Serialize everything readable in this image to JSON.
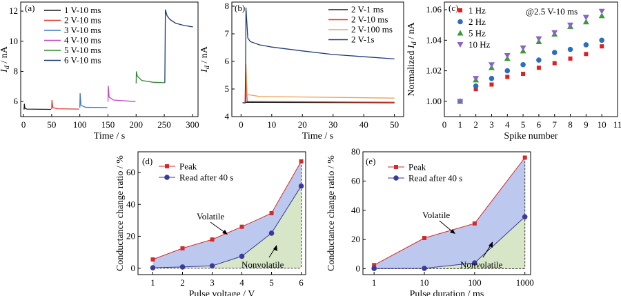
{
  "chart_data": [
    {
      "panel": "(a)",
      "type": "line",
      "xlabel": "Time / s",
      "ylabel": "I_d / nA",
      "xlim": [
        -5,
        310
      ],
      "ylim": [
        5,
        12.6
      ],
      "xticks": [
        0,
        50,
        100,
        150,
        200,
        250,
        300
      ],
      "yticks": [
        6,
        8,
        10,
        12
      ],
      "series": [
        {
          "name": "1 V-10 ms",
          "color": "#1a1a1a",
          "points": [
            [
              0,
              5.5
            ],
            [
              1,
              5.5
            ],
            [
              1.5,
              5.85
            ],
            [
              2.5,
              5.55
            ],
            [
              6,
              5.5
            ],
            [
              49,
              5.48
            ]
          ]
        },
        {
          "name": "2 V-10 ms",
          "color": "#e0392b",
          "points": [
            [
              50,
              5.5
            ],
            [
              50.5,
              6.1
            ],
            [
              52,
              5.6
            ],
            [
              60,
              5.52
            ],
            [
              99,
              5.5
            ]
          ]
        },
        {
          "name": "3 V-10 ms",
          "color": "#3a78c2",
          "points": [
            [
              100,
              5.6
            ],
            [
              100.5,
              6.55
            ],
            [
              102,
              5.75
            ],
            [
              110,
              5.62
            ],
            [
              149,
              5.6
            ]
          ]
        },
        {
          "name": "4 V-10 ms",
          "color": "#c04ac0",
          "points": [
            [
              150,
              6.0
            ],
            [
              150.5,
              7.05
            ],
            [
              152,
              6.3
            ],
            [
              160,
              6.1
            ],
            [
              199,
              6.0
            ]
          ]
        },
        {
          "name": "5 V-10 ms",
          "color": "#2f8a2f",
          "points": [
            [
              200,
              7.2
            ],
            [
              200.5,
              8.0
            ],
            [
              202,
              7.7
            ],
            [
              210,
              7.4
            ],
            [
              230,
              7.28
            ],
            [
              251,
              7.25
            ]
          ]
        },
        {
          "name": "6 V-10 ms",
          "color": "#1f3a78",
          "points": [
            [
              251,
              7.25
            ],
            [
              252,
              12.1
            ],
            [
              255,
              11.7
            ],
            [
              260,
              11.45
            ],
            [
              270,
              11.2
            ],
            [
              285,
              11.05
            ],
            [
              301,
              10.95
            ]
          ]
        }
      ]
    },
    {
      "panel": "(b)",
      "type": "line",
      "xlabel": "Time / s",
      "ylabel": "I_d / nA",
      "xlim": [
        -3,
        53
      ],
      "ylim": [
        4,
        8.15
      ],
      "xticks": [
        0,
        10,
        20,
        30,
        40,
        50
      ],
      "yticks": [
        4,
        5,
        6,
        7,
        8
      ],
      "series": [
        {
          "name": "2 V-1 ms",
          "color": "#1a1a1a",
          "points": [
            [
              0.5,
              4.5
            ],
            [
              1.3,
              4.5
            ],
            [
              1.5,
              4.52
            ],
            [
              50,
              4.5
            ]
          ]
        },
        {
          "name": "2 V-10 ms",
          "color": "#e0392b",
          "points": [
            [
              0.5,
              4.5
            ],
            [
              1.3,
              4.5
            ],
            [
              1.5,
              5.6
            ],
            [
              2,
              4.55
            ],
            [
              50,
              4.52
            ]
          ]
        },
        {
          "name": "2 V-100 ms",
          "color": "#f0a050",
          "points": [
            [
              0.5,
              4.5
            ],
            [
              1.4,
              4.5
            ],
            [
              1.6,
              5.9
            ],
            [
              2,
              4.8
            ],
            [
              6,
              4.73
            ],
            [
              50,
              4.67
            ]
          ]
        },
        {
          "name": "2 V-1s",
          "color": "#1f3a78",
          "points": [
            [
              0.5,
              4.5
            ],
            [
              1.4,
              4.5
            ],
            [
              1.6,
              7.95
            ],
            [
              2.2,
              6.85
            ],
            [
              3,
              6.72
            ],
            [
              6,
              6.6
            ],
            [
              10,
              6.52
            ],
            [
              20,
              6.38
            ],
            [
              30,
              6.25
            ],
            [
              40,
              6.17
            ],
            [
              50,
              6.09
            ]
          ]
        }
      ]
    },
    {
      "panel": "(c)",
      "type": "scatter",
      "xlabel": "Spike number",
      "ylabel": "Normalized I_d / nA",
      "annotation": "@2.5 V-10 ms",
      "xlim": [
        0,
        11
      ],
      "ylim": [
        0.99,
        1.065
      ],
      "xticks": [
        0,
        1,
        2,
        3,
        4,
        5,
        6,
        7,
        8,
        9,
        10,
        11
      ],
      "yticks": [
        1.0,
        1.02,
        1.04,
        1.06
      ],
      "x": [
        1,
        2,
        3,
        4,
        5,
        6,
        7,
        8,
        9,
        10
      ],
      "series": [
        {
          "name": "1 Hz",
          "marker": "square",
          "color": "#e02020",
          "values": [
            1.0,
            1.008,
            1.011,
            1.016,
            1.018,
            1.022,
            1.025,
            1.028,
            1.031,
            1.036
          ]
        },
        {
          "name": "2 Hz",
          "marker": "circle",
          "color": "#2a6fbf",
          "values": [
            1.0,
            1.01,
            1.015,
            1.02,
            1.024,
            1.027,
            1.032,
            1.034,
            1.037,
            1.04
          ]
        },
        {
          "name": "5 Hz",
          "marker": "triangle-up",
          "color": "#3a9a3a",
          "values": [
            1.0,
            1.014,
            1.022,
            1.028,
            1.033,
            1.039,
            1.044,
            1.049,
            1.052,
            1.056
          ]
        },
        {
          "name": "10 Hz",
          "marker": "triangle-down",
          "color": "#8a63c9",
          "values": [
            1.0,
            1.015,
            1.024,
            1.03,
            1.035,
            1.041,
            1.045,
            1.05,
            1.055,
            1.059
          ]
        }
      ]
    },
    {
      "panel": "(d)",
      "type": "area",
      "xlabel": "Pulse voltage / V",
      "ylabel": "Conductance change ratio / %",
      "xlim": [
        0.5,
        6.15
      ],
      "ylim": [
        -4,
        73
      ],
      "xticks": [
        1,
        2,
        3,
        4,
        5,
        6
      ],
      "yticks": [
        0,
        20,
        40,
        60
      ],
      "x": [
        1,
        2,
        3,
        4,
        5,
        6
      ],
      "series": [
        {
          "name": "Peak",
          "color": "#d42a2a",
          "marker": "square",
          "values": [
            5.5,
            12.5,
            18.0,
            26.0,
            34.5,
            67.0
          ]
        },
        {
          "name": "Read after 40 s",
          "color": "#3a3a9a",
          "marker": "circle",
          "values": [
            0.3,
            0.8,
            1.5,
            7.5,
            22.0,
            51.5
          ]
        }
      ],
      "annotations": [
        "Volatile",
        "Nonvolatile"
      ]
    },
    {
      "panel": "(e)",
      "type": "area",
      "xlabel": "Pulse duration / ms",
      "ylabel": "Conductance change ratio / %",
      "xscale": "log",
      "xlim": [
        0.6,
        1300
      ],
      "ylim": [
        -4,
        80
      ],
      "xticks": [
        1,
        10,
        100,
        1000
      ],
      "yticks": [
        0,
        20,
        40,
        60,
        80
      ],
      "x": [
        1,
        10,
        100,
        1000
      ],
      "series": [
        {
          "name": "Peak",
          "color": "#d42a2a",
          "marker": "square",
          "values": [
            2.5,
            21.0,
            31.0,
            76.0
          ]
        },
        {
          "name": "Read after 40 s",
          "color": "#3a3a9a",
          "marker": "circle",
          "values": [
            0.2,
            0.3,
            4.0,
            35.5
          ]
        }
      ],
      "annotations": [
        "Volatile",
        "Nonvolatile"
      ]
    }
  ]
}
